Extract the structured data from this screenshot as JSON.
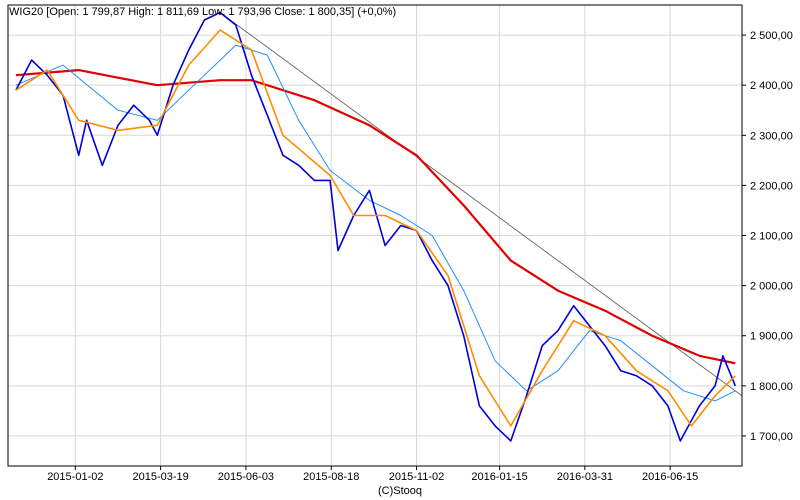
{
  "chart_data": {
    "type": "line",
    "title": "WIG20 [Open: 1 799,87  High: 1 811,69  Low: 1 793,96  Close: 1 800,35] (+0,0%)",
    "credit": "(C)Stooq",
    "xlabel": "",
    "ylabel": "",
    "x_tick_labels": [
      "2015-01-02",
      "2015-03-19",
      "2015-06-03",
      "2015-08-18",
      "2015-11-02",
      "2016-01-15",
      "2016-03-31",
      "2016-06-15"
    ],
    "y_tick_values": [
      1700,
      1800,
      1900,
      2000,
      2100,
      2200,
      2300,
      2400,
      2500
    ],
    "y_tick_labels": [
      "1 700,00",
      "1 800,00",
      "1 900,00",
      "2 000,00",
      "2 100,00",
      "2 200,00",
      "2 300,00",
      "2 400,00",
      "2 500,00"
    ],
    "ylim": [
      1640,
      2560
    ],
    "x_range": [
      "2014-11-03",
      "2016-08-18"
    ],
    "grid": true,
    "legend": "none",
    "colors": {
      "price": "#0000dd",
      "ma_short": "#ff8c00",
      "ma_mid": "#1e90ff",
      "ma_long": "#e00000",
      "trendline": "#555555",
      "grid": "#d8d8d8",
      "axis": "#000000"
    },
    "series": [
      {
        "id": "price",
        "values": [
          [
            "2014-11-10",
            2390
          ],
          [
            "2014-11-24",
            2450
          ],
          [
            "2014-12-08",
            2420
          ],
          [
            "2014-12-22",
            2380
          ],
          [
            "2015-01-05",
            2260
          ],
          [
            "2015-01-12",
            2330
          ],
          [
            "2015-01-26",
            2240
          ],
          [
            "2015-02-09",
            2320
          ],
          [
            "2015-02-23",
            2360
          ],
          [
            "2015-03-09",
            2330
          ],
          [
            "2015-03-16",
            2300
          ],
          [
            "2015-03-30",
            2400
          ],
          [
            "2015-04-13",
            2470
          ],
          [
            "2015-04-27",
            2530
          ],
          [
            "2015-05-11",
            2545
          ],
          [
            "2015-05-25",
            2520
          ],
          [
            "2015-06-08",
            2420
          ],
          [
            "2015-06-22",
            2340
          ],
          [
            "2015-07-06",
            2260
          ],
          [
            "2015-07-20",
            2240
          ],
          [
            "2015-08-03",
            2210
          ],
          [
            "2015-08-17",
            2210
          ],
          [
            "2015-08-24",
            2070
          ],
          [
            "2015-09-07",
            2140
          ],
          [
            "2015-09-21",
            2190
          ],
          [
            "2015-10-05",
            2080
          ],
          [
            "2015-10-19",
            2120
          ],
          [
            "2015-11-02",
            2110
          ],
          [
            "2015-11-16",
            2050
          ],
          [
            "2015-11-30",
            2000
          ],
          [
            "2015-12-14",
            1900
          ],
          [
            "2015-12-28",
            1760
          ],
          [
            "2016-01-11",
            1720
          ],
          [
            "2016-01-25",
            1690
          ],
          [
            "2016-02-08",
            1780
          ],
          [
            "2016-02-22",
            1880
          ],
          [
            "2016-03-07",
            1910
          ],
          [
            "2016-03-21",
            1960
          ],
          [
            "2016-04-04",
            1920
          ],
          [
            "2016-04-18",
            1880
          ],
          [
            "2016-05-02",
            1830
          ],
          [
            "2016-05-16",
            1820
          ],
          [
            "2016-05-30",
            1800
          ],
          [
            "2016-06-13",
            1760
          ],
          [
            "2016-06-24",
            1690
          ],
          [
            "2016-07-11",
            1760
          ],
          [
            "2016-07-25",
            1800
          ],
          [
            "2016-08-01",
            1860
          ],
          [
            "2016-08-12",
            1800
          ]
        ]
      },
      {
        "id": "ma_short",
        "values": [
          [
            "2014-11-10",
            2390
          ],
          [
            "2014-12-08",
            2430
          ],
          [
            "2015-01-05",
            2330
          ],
          [
            "2015-02-09",
            2310
          ],
          [
            "2015-03-16",
            2320
          ],
          [
            "2015-04-13",
            2440
          ],
          [
            "2015-05-11",
            2510
          ],
          [
            "2015-06-08",
            2470
          ],
          [
            "2015-07-06",
            2300
          ],
          [
            "2015-08-17",
            2220
          ],
          [
            "2015-09-07",
            2140
          ],
          [
            "2015-10-05",
            2140
          ],
          [
            "2015-11-02",
            2110
          ],
          [
            "2015-11-30",
            2020
          ],
          [
            "2015-12-28",
            1820
          ],
          [
            "2016-01-25",
            1720
          ],
          [
            "2016-02-22",
            1830
          ],
          [
            "2016-03-21",
            1930
          ],
          [
            "2016-04-18",
            1900
          ],
          [
            "2016-05-16",
            1830
          ],
          [
            "2016-06-13",
            1790
          ],
          [
            "2016-07-04",
            1720
          ],
          [
            "2016-07-25",
            1780
          ],
          [
            "2016-08-12",
            1820
          ]
        ]
      },
      {
        "id": "ma_mid",
        "values": [
          [
            "2014-11-10",
            2400
          ],
          [
            "2014-12-22",
            2440
          ],
          [
            "2015-02-09",
            2350
          ],
          [
            "2015-03-16",
            2330
          ],
          [
            "2015-04-13",
            2390
          ],
          [
            "2015-05-25",
            2480
          ],
          [
            "2015-06-22",
            2460
          ],
          [
            "2015-07-20",
            2330
          ],
          [
            "2015-08-17",
            2230
          ],
          [
            "2015-09-21",
            2170
          ],
          [
            "2015-10-19",
            2140
          ],
          [
            "2015-11-16",
            2100
          ],
          [
            "2015-12-14",
            1990
          ],
          [
            "2016-01-11",
            1850
          ],
          [
            "2016-02-08",
            1790
          ],
          [
            "2016-03-07",
            1830
          ],
          [
            "2016-04-04",
            1910
          ],
          [
            "2016-05-02",
            1890
          ],
          [
            "2016-05-30",
            1840
          ],
          [
            "2016-06-27",
            1790
          ],
          [
            "2016-07-25",
            1770
          ],
          [
            "2016-08-12",
            1790
          ]
        ]
      },
      {
        "id": "ma_long",
        "values": [
          [
            "2014-11-10",
            2420
          ],
          [
            "2015-01-05",
            2430
          ],
          [
            "2015-03-16",
            2400
          ],
          [
            "2015-05-11",
            2410
          ],
          [
            "2015-06-08",
            2410
          ],
          [
            "2015-08-03",
            2370
          ],
          [
            "2015-09-21",
            2320
          ],
          [
            "2015-11-02",
            2260
          ],
          [
            "2015-12-14",
            2160
          ],
          [
            "2016-01-25",
            2050
          ],
          [
            "2016-03-07",
            1990
          ],
          [
            "2016-04-18",
            1950
          ],
          [
            "2016-05-30",
            1900
          ],
          [
            "2016-07-11",
            1860
          ],
          [
            "2016-08-12",
            1845
          ]
        ]
      },
      {
        "id": "trendline",
        "values": [
          [
            "2015-05-11",
            2545
          ],
          [
            "2016-08-18",
            1780
          ]
        ]
      }
    ]
  }
}
